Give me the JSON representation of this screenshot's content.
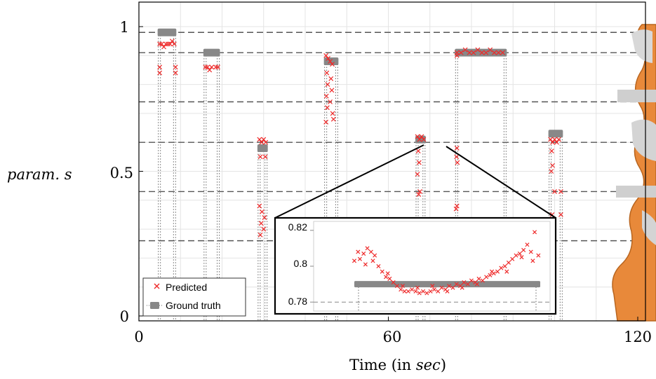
{
  "chart_data": {
    "type": "scatter",
    "xlabel_main": "Time (in ",
    "xlabel_unit": "sec",
    "xlabel_close": ")",
    "ylabel": "param. s",
    "xlim": [
      0,
      120
    ],
    "ylim": [
      0,
      1
    ],
    "xticks": [
      "0",
      "60",
      "120"
    ],
    "yticks": [
      "0",
      "0.5",
      "1"
    ],
    "grid": true,
    "legend_position": "bottom-left",
    "legend": {
      "predicted": "Predicted",
      "ground_truth": "Ground truth"
    },
    "reference_levels": [
      0.98,
      0.91,
      0.74,
      0.6,
      0.43,
      0.26
    ],
    "ground_truth_segments": [
      {
        "t_start": 4.5,
        "t_end": 9.0,
        "s": 0.98
      },
      {
        "t_start": 15.5,
        "t_end": 19.5,
        "s": 0.91
      },
      {
        "t_start": 28.5,
        "t_end": 31.0,
        "s": 0.58
      },
      {
        "t_start": 44.5,
        "t_end": 48.0,
        "s": 0.88
      },
      {
        "t_start": 66.5,
        "t_end": 69.0,
        "s": 0.61
      },
      {
        "t_start": 76.0,
        "t_end": 88.5,
        "s": 0.91
      },
      {
        "t_start": 98.5,
        "t_end": 102.0,
        "s": 0.63
      }
    ],
    "predicted": [
      {
        "t": 5.0,
        "s": 0.94
      },
      {
        "t": 5.5,
        "s": 0.94
      },
      {
        "t": 6.0,
        "s": 0.93
      },
      {
        "t": 6.5,
        "s": 0.94
      },
      {
        "t": 7.0,
        "s": 0.94
      },
      {
        "t": 7.5,
        "s": 0.94
      },
      {
        "t": 8.0,
        "s": 0.95
      },
      {
        "t": 8.5,
        "s": 0.94
      },
      {
        "t": 5.0,
        "s": 0.86
      },
      {
        "t": 5.0,
        "s": 0.84
      },
      {
        "t": 8.8,
        "s": 0.86
      },
      {
        "t": 8.8,
        "s": 0.84
      },
      {
        "t": 16.0,
        "s": 0.86
      },
      {
        "t": 16.5,
        "s": 0.86
      },
      {
        "t": 17.0,
        "s": 0.85
      },
      {
        "t": 17.5,
        "s": 0.86
      },
      {
        "t": 18.5,
        "s": 0.86
      },
      {
        "t": 19.0,
        "s": 0.86
      },
      {
        "t": 29.0,
        "s": 0.61
      },
      {
        "t": 29.5,
        "s": 0.6
      },
      {
        "t": 30.0,
        "s": 0.61
      },
      {
        "t": 30.5,
        "s": 0.6
      },
      {
        "t": 29.2,
        "s": 0.55
      },
      {
        "t": 30.4,
        "s": 0.55
      },
      {
        "t": 29.0,
        "s": 0.38
      },
      {
        "t": 29.6,
        "s": 0.36
      },
      {
        "t": 30.2,
        "s": 0.34
      },
      {
        "t": 29.4,
        "s": 0.32
      },
      {
        "t": 30.0,
        "s": 0.3
      },
      {
        "t": 29.2,
        "s": 0.28
      },
      {
        "t": 45.0,
        "s": 0.9
      },
      {
        "t": 45.5,
        "s": 0.89
      },
      {
        "t": 46.0,
        "s": 0.88
      },
      {
        "t": 46.5,
        "s": 0.87
      },
      {
        "t": 45.2,
        "s": 0.84
      },
      {
        "t": 46.2,
        "s": 0.82
      },
      {
        "t": 45.4,
        "s": 0.8
      },
      {
        "t": 46.4,
        "s": 0.78
      },
      {
        "t": 45.1,
        "s": 0.76
      },
      {
        "t": 46.0,
        "s": 0.74
      },
      {
        "t": 45.3,
        "s": 0.72
      },
      {
        "t": 46.6,
        "s": 0.7
      },
      {
        "t": 45.0,
        "s": 0.67
      },
      {
        "t": 46.8,
        "s": 0.68
      },
      {
        "t": 67.0,
        "s": 0.62
      },
      {
        "t": 67.5,
        "s": 0.61
      },
      {
        "t": 68.0,
        "s": 0.62
      },
      {
        "t": 68.5,
        "s": 0.61
      },
      {
        "t": 67.2,
        "s": 0.57
      },
      {
        "t": 67.4,
        "s": 0.53
      },
      {
        "t": 67.0,
        "s": 0.49
      },
      {
        "t": 67.6,
        "s": 0.43
      },
      {
        "t": 67.3,
        "s": 0.42
      },
      {
        "t": 76.5,
        "s": 0.91
      },
      {
        "t": 77.5,
        "s": 0.91
      },
      {
        "t": 78.5,
        "s": 0.92
      },
      {
        "t": 79.5,
        "s": 0.91
      },
      {
        "t": 80.5,
        "s": 0.91
      },
      {
        "t": 81.5,
        "s": 0.92
      },
      {
        "t": 82.5,
        "s": 0.91
      },
      {
        "t": 83.5,
        "s": 0.91
      },
      {
        "t": 84.5,
        "s": 0.92
      },
      {
        "t": 85.5,
        "s": 0.91
      },
      {
        "t": 86.5,
        "s": 0.91
      },
      {
        "t": 87.5,
        "s": 0.91
      },
      {
        "t": 76.5,
        "s": 0.9
      },
      {
        "t": 76.5,
        "s": 0.58
      },
      {
        "t": 76.4,
        "s": 0.55
      },
      {
        "t": 76.6,
        "s": 0.53
      },
      {
        "t": 76.5,
        "s": 0.38
      },
      {
        "t": 76.3,
        "s": 0.37
      },
      {
        "t": 99.0,
        "s": 0.61
      },
      {
        "t": 99.5,
        "s": 0.6
      },
      {
        "t": 100.0,
        "s": 0.61
      },
      {
        "t": 100.5,
        "s": 0.6
      },
      {
        "t": 101.0,
        "s": 0.61
      },
      {
        "t": 99.3,
        "s": 0.57
      },
      {
        "t": 99.5,
        "s": 0.52
      },
      {
        "t": 99.2,
        "s": 0.5
      },
      {
        "t": 100.0,
        "s": 0.43
      },
      {
        "t": 101.5,
        "s": 0.43
      },
      {
        "t": 99.4,
        "s": 0.35
      },
      {
        "t": 101.5,
        "s": 0.35
      }
    ],
    "inset": {
      "ylim": [
        0.775,
        0.825
      ],
      "yticks": [
        "0.78",
        "0.8",
        "0.82"
      ],
      "ground_truth_s": 0.79,
      "reference_level": 0.78,
      "predicted": [
        {
          "t": 0.0,
          "s": 0.803
        },
        {
          "t": 0.03,
          "s": 0.804
        },
        {
          "t": 0.05,
          "s": 0.807
        },
        {
          "t": 0.07,
          "s": 0.81
        },
        {
          "t": 0.09,
          "s": 0.808
        },
        {
          "t": 0.11,
          "s": 0.806
        },
        {
          "t": 0.13,
          "s": 0.8
        },
        {
          "t": 0.15,
          "s": 0.797
        },
        {
          "t": 0.17,
          "s": 0.794
        },
        {
          "t": 0.19,
          "s": 0.793
        },
        {
          "t": 0.21,
          "s": 0.791
        },
        {
          "t": 0.23,
          "s": 0.789
        },
        {
          "t": 0.25,
          "s": 0.787
        },
        {
          "t": 0.27,
          "s": 0.786
        },
        {
          "t": 0.29,
          "s": 0.786
        },
        {
          "t": 0.31,
          "s": 0.787
        },
        {
          "t": 0.33,
          "s": 0.786
        },
        {
          "t": 0.35,
          "s": 0.785
        },
        {
          "t": 0.37,
          "s": 0.786
        },
        {
          "t": 0.39,
          "s": 0.785
        },
        {
          "t": 0.41,
          "s": 0.786
        },
        {
          "t": 0.43,
          "s": 0.787
        },
        {
          "t": 0.45,
          "s": 0.786
        },
        {
          "t": 0.47,
          "s": 0.788
        },
        {
          "t": 0.49,
          "s": 0.787
        },
        {
          "t": 0.51,
          "s": 0.789
        },
        {
          "t": 0.53,
          "s": 0.788
        },
        {
          "t": 0.55,
          "s": 0.79
        },
        {
          "t": 0.57,
          "s": 0.789
        },
        {
          "t": 0.59,
          "s": 0.791
        },
        {
          "t": 0.61,
          "s": 0.79
        },
        {
          "t": 0.63,
          "s": 0.792
        },
        {
          "t": 0.65,
          "s": 0.791
        },
        {
          "t": 0.67,
          "s": 0.793
        },
        {
          "t": 0.69,
          "s": 0.792
        },
        {
          "t": 0.71,
          "s": 0.794
        },
        {
          "t": 0.73,
          "s": 0.795
        },
        {
          "t": 0.75,
          "s": 0.796
        },
        {
          "t": 0.77,
          "s": 0.797
        },
        {
          "t": 0.79,
          "s": 0.799
        },
        {
          "t": 0.81,
          "s": 0.8
        },
        {
          "t": 0.83,
          "s": 0.802
        },
        {
          "t": 0.85,
          "s": 0.804
        },
        {
          "t": 0.87,
          "s": 0.806
        },
        {
          "t": 0.89,
          "s": 0.807
        },
        {
          "t": 0.91,
          "s": 0.809
        },
        {
          "t": 0.93,
          "s": 0.812
        },
        {
          "t": 0.95,
          "s": 0.808
        },
        {
          "t": 0.97,
          "s": 0.819
        },
        {
          "t": 0.99,
          "s": 0.806
        },
        {
          "t": 0.02,
          "s": 0.808
        },
        {
          "t": 0.06,
          "s": 0.801
        },
        {
          "t": 0.1,
          "s": 0.803
        },
        {
          "t": 0.18,
          "s": 0.796
        },
        {
          "t": 0.26,
          "s": 0.789
        },
        {
          "t": 0.34,
          "s": 0.788
        },
        {
          "t": 0.42,
          "s": 0.789
        },
        {
          "t": 0.5,
          "s": 0.786
        },
        {
          "t": 0.58,
          "s": 0.788
        },
        {
          "t": 0.66,
          "s": 0.79
        },
        {
          "t": 0.74,
          "s": 0.797
        },
        {
          "t": 0.82,
          "s": 0.797
        },
        {
          "t": 0.9,
          "s": 0.805
        },
        {
          "t": 0.96,
          "s": 0.803
        }
      ]
    },
    "colors": {
      "predicted": "#ee2a2a",
      "ground_truth": "#888888",
      "axis": "#000000",
      "grid": "#e4e4e4",
      "reference": "#555555",
      "robot_orange": "#e8893a",
      "robot_silver": "#c9c9c9"
    }
  }
}
